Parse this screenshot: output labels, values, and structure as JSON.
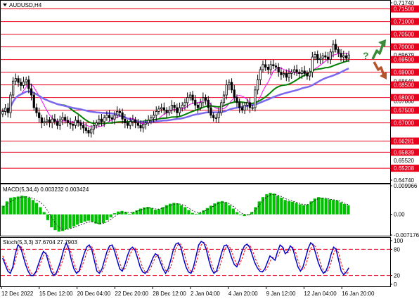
{
  "title": "AUDUSD,H4",
  "colors": {
    "level": "#e8001c",
    "up_candle": "#ffffff",
    "candle_line": "#000000",
    "ma_fast": "#ff00ff",
    "ma_mid": "#008000",
    "ma_slow": "#7b68ee",
    "macd": "#00c000",
    "stoch_main": "#0000cd",
    "stoch_signal": "#ff0000",
    "arrow_up": "#3a8a3a",
    "arrow_down": "#b5532a"
  },
  "icons": {
    "up": "arrow-up-icon",
    "down": "arrow-down-icon",
    "question": "?"
  },
  "x_labels": [
    "12 Dec 2022",
    "15 Dec 12:00",
    "20 Dec 04:00",
    "22 Dec 20:00",
    "28 Dec 12:00",
    "2 Jan 04:00",
    "4 Jan 20:00",
    "9 Jan 12:00",
    "12 Jan 04:00",
    "16 Jan 20:00"
  ],
  "chart_data": [
    {
      "type": "candlestick",
      "title": "AUDUSD,H4",
      "ylim": [
        0.6474,
        0.7174
      ],
      "ticks": [
        "0.71740",
        "0.64740"
      ],
      "levels": [
        "0.71500",
        "0.71000",
        "0.70500",
        "0.70000",
        "0.69500",
        "0.69000",
        "0.68500",
        "0.68000",
        "0.67500",
        "0.67000",
        "0.66281",
        "0.65839",
        "0.65208"
      ],
      "extra_labels": [
        "0.69679",
        "0.68640",
        "0.67860",
        "0.65520"
      ],
      "close": [
        0.6745,
        0.6758,
        0.674,
        0.681,
        0.6865,
        0.6875,
        0.686,
        0.6848,
        0.6862,
        0.687,
        0.6835,
        0.681,
        0.676,
        0.674,
        0.672,
        0.67,
        0.6705,
        0.6712,
        0.67,
        0.6715,
        0.6705,
        0.669,
        0.6712,
        0.6722,
        0.671,
        0.67,
        0.6695,
        0.669,
        0.671,
        0.67,
        0.669,
        0.668,
        0.667,
        0.666,
        0.6675,
        0.669,
        0.67,
        0.6715,
        0.6705,
        0.672,
        0.673,
        0.672,
        0.6715,
        0.673,
        0.6745,
        0.674,
        0.6715,
        0.67,
        0.669,
        0.6705,
        0.6712,
        0.67,
        0.669,
        0.668,
        0.6695,
        0.67,
        0.671,
        0.672,
        0.673,
        0.6745,
        0.6755,
        0.676,
        0.675,
        0.674,
        0.675,
        0.677,
        0.676,
        0.674,
        0.676,
        0.677,
        0.678,
        0.68,
        0.681,
        0.679,
        0.677,
        0.676,
        0.678,
        0.68,
        0.679,
        0.676,
        0.673,
        0.672,
        0.672,
        0.674,
        0.678,
        0.681,
        0.685,
        0.686,
        0.683,
        0.68,
        0.678,
        0.676,
        0.675,
        0.677,
        0.678,
        0.676,
        0.676,
        0.683,
        0.687,
        0.691,
        0.693,
        0.692,
        0.691,
        0.693,
        0.6925,
        0.692,
        0.69,
        0.689,
        0.6895,
        0.688,
        0.6895,
        0.69,
        0.691,
        0.69,
        0.6895,
        0.6905,
        0.6895,
        0.6885,
        0.69,
        0.696,
        0.697,
        0.695,
        0.6955,
        0.6965,
        0.696,
        0.695,
        0.698,
        0.701,
        0.699,
        0.6975,
        0.696,
        0.6965,
        0.6955,
        0.6968
      ]
    },
    {
      "type": "histogram",
      "title": "MACD(5,34,4) 0.003232 0.003424",
      "ylim": [
        -0.007176,
        0.009966
      ],
      "ticks": [
        "0.009966",
        "0.00",
        "-0.007176"
      ],
      "values": [
        0.003,
        0.0045,
        0.0058,
        0.006,
        0.0062,
        0.0065,
        0.0063,
        0.0058,
        0.005,
        0.004,
        0.0025,
        0.0008,
        -0.002,
        -0.0045,
        -0.0055,
        -0.006,
        -0.0058,
        -0.0052,
        -0.0048,
        -0.0042,
        -0.0036,
        -0.003,
        -0.0025,
        -0.0022,
        -0.0026,
        -0.0032,
        -0.0035,
        -0.003,
        -0.002,
        -0.001,
        0.0004,
        0.001,
        0.0012,
        0.0008,
        0.0002,
        0.0008,
        0.0014,
        0.002,
        0.0024,
        0.0026,
        0.0022,
        0.0016,
        0.0018,
        0.0025,
        0.0032,
        0.0037,
        0.004,
        0.0038,
        0.0032,
        0.0025,
        0.0015,
        0.0005,
        0.0002,
        0.0006,
        0.0014,
        0.0022,
        0.003,
        0.0038,
        0.0044,
        0.0046,
        0.0042,
        0.0032,
        0.002,
        0.0008,
        -0.0002,
        -0.0006,
        -0.0003,
        0.0008,
        0.0025,
        0.0045,
        0.006,
        0.007,
        0.0075,
        0.0072,
        0.0065,
        0.0058,
        0.005,
        0.0046,
        0.0044,
        0.004,
        0.0035,
        0.0032,
        0.0034,
        0.0045,
        0.0055,
        0.006,
        0.0058,
        0.0055,
        0.0052,
        0.005,
        0.0048,
        0.0042,
        0.0036,
        0.0032
      ],
      "signal": [
        0.0025,
        0.0035,
        0.0045,
        0.0052,
        0.0057,
        0.006,
        0.0061,
        0.006,
        0.0056,
        0.005,
        0.0042,
        0.003,
        0.0012,
        -0.001,
        -0.003,
        -0.0045,
        -0.0052,
        -0.0053,
        -0.005,
        -0.0046,
        -0.0041,
        -0.0036,
        -0.0031,
        -0.0027,
        -0.0026,
        -0.0029,
        -0.0032,
        -0.0031,
        -0.0026,
        -0.0018,
        -0.0008,
        0.0001,
        0.0007,
        0.0008,
        0.0006,
        0.0007,
        0.001,
        0.0015,
        0.0019,
        0.0022,
        0.0022,
        0.0019,
        0.0018,
        0.0021,
        0.0026,
        0.0031,
        0.0035,
        0.0037,
        0.0035,
        0.003,
        0.0022,
        0.0013,
        0.0007,
        0.0006,
        0.001,
        0.0016,
        0.0023,
        0.0031,
        0.0038,
        0.0042,
        0.0042,
        0.0037,
        0.0028,
        0.0017,
        0.0006,
        0.0,
        -0.0002,
        0.0003,
        0.0015,
        0.0032,
        0.0048,
        0.006,
        0.0068,
        0.007,
        0.0067,
        0.0062,
        0.0055,
        0.005,
        0.0046,
        0.0042,
        0.0038,
        0.0034,
        0.0034,
        0.004,
        0.0049,
        0.0055,
        0.0057,
        0.0056,
        0.0053,
        0.0051,
        0.0049,
        0.0045,
        0.0039,
        0.0034
      ]
    },
    {
      "type": "line",
      "title": "Stoch(5,3,3) 37.6704 27.7903",
      "ylim": [
        0,
        100
      ],
      "ticks": [
        "100",
        "80",
        "20",
        "0"
      ],
      "levels": [
        80,
        20
      ],
      "main": [
        60,
        45,
        30,
        25,
        40,
        70,
        90,
        85,
        65,
        45,
        30,
        20,
        20,
        28,
        45,
        62,
        75,
        70,
        50,
        30,
        20,
        25,
        40,
        58,
        80,
        95,
        80,
        55,
        35,
        25,
        30,
        50,
        70,
        85,
        90,
        80,
        55,
        30,
        25,
        35,
        55,
        75,
        88,
        90,
        75,
        55,
        35,
        30,
        45,
        65,
        80,
        85,
        78,
        60,
        40,
        28,
        25,
        32,
        45,
        60,
        70,
        65,
        50,
        35,
        25,
        35,
        55,
        78,
        92,
        95,
        85,
        60,
        40,
        28,
        25,
        40,
        65,
        90,
        98,
        95,
        80,
        55,
        35,
        25,
        30,
        50,
        72,
        88,
        90,
        78,
        60,
        45,
        40,
        55,
        75,
        88,
        92,
        85,
        68,
        50,
        38,
        30,
        28,
        35,
        50,
        65,
        60,
        55,
        75,
        90,
        85,
        70,
        75,
        88,
        82,
        60,
        40,
        30,
        40,
        60,
        82,
        95,
        90,
        70,
        50,
        35,
        25,
        30,
        45,
        68,
        85,
        80,
        55,
        30,
        22,
        28,
        37.67
      ],
      "signal": [
        65,
        52,
        38,
        30,
        35,
        55,
        78,
        88,
        78,
        58,
        40,
        27,
        22,
        24,
        35,
        50,
        66,
        72,
        62,
        42,
        27,
        22,
        30,
        45,
        62,
        82,
        88,
        70,
        48,
        32,
        28,
        38,
        55,
        72,
        85,
        87,
        70,
        45,
        30,
        28,
        40,
        60,
        78,
        88,
        85,
        68,
        48,
        35,
        35,
        50,
        68,
        80,
        83,
        73,
        55,
        38,
        28,
        27,
        35,
        48,
        62,
        68,
        60,
        45,
        32,
        28,
        40,
        60,
        80,
        92,
        92,
        78,
        55,
        38,
        28,
        30,
        48,
        72,
        90,
        96,
        90,
        70,
        48,
        32,
        27,
        35,
        55,
        75,
        88,
        88,
        75,
        58,
        45,
        45,
        58,
        75,
        88,
        90,
        80,
        63,
        48,
        36,
        30,
        30,
        38,
        52,
        62,
        60,
        62,
        75,
        85,
        80,
        72,
        78,
        85,
        75,
        55,
        38,
        33,
        42,
        62,
        82,
        92,
        85,
        65,
        45,
        32,
        27,
        33,
        50,
        70,
        82,
        72,
        48,
        30,
        24,
        27.79
      ]
    }
  ]
}
